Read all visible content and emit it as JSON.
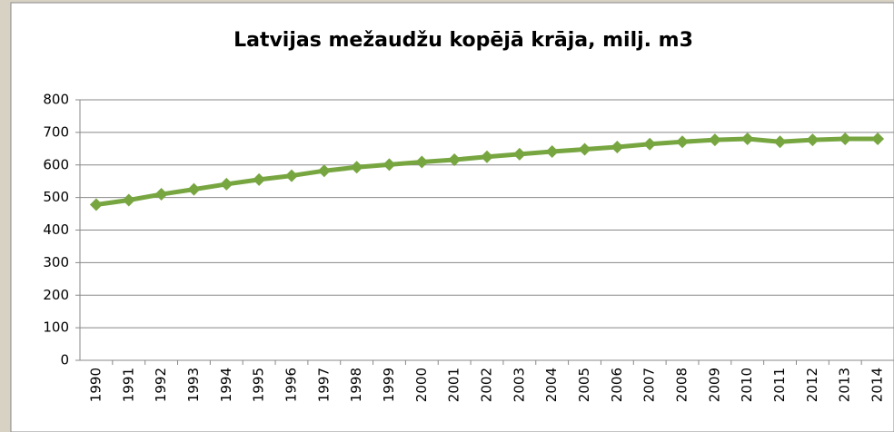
{
  "chart_data": {
    "type": "line",
    "title": "Latvijas mežaudžu kopējā krāja, milj. m3",
    "categories": [
      "1990",
      "1991",
      "1992",
      "1993",
      "1994",
      "1995",
      "1996",
      "1997",
      "1998",
      "1999",
      "2000",
      "2001",
      "2002",
      "2003",
      "2004",
      "2005",
      "2006",
      "2007",
      "2008",
      "2009",
      "2010",
      "2011",
      "2012",
      "2013",
      "2014"
    ],
    "series": [
      {
        "color": "#77a641",
        "values": [
          478,
          492,
          510,
          525,
          541,
          555,
          567,
          582,
          593,
          601,
          609,
          616,
          625,
          633,
          641,
          648,
          655,
          664,
          671,
          677,
          680,
          671,
          677,
          680,
          680
        ]
      }
    ],
    "ylim": [
      0,
      800
    ],
    "yticks": [
      0,
      100,
      200,
      300,
      400,
      500,
      600,
      700,
      800
    ],
    "grid": true
  }
}
